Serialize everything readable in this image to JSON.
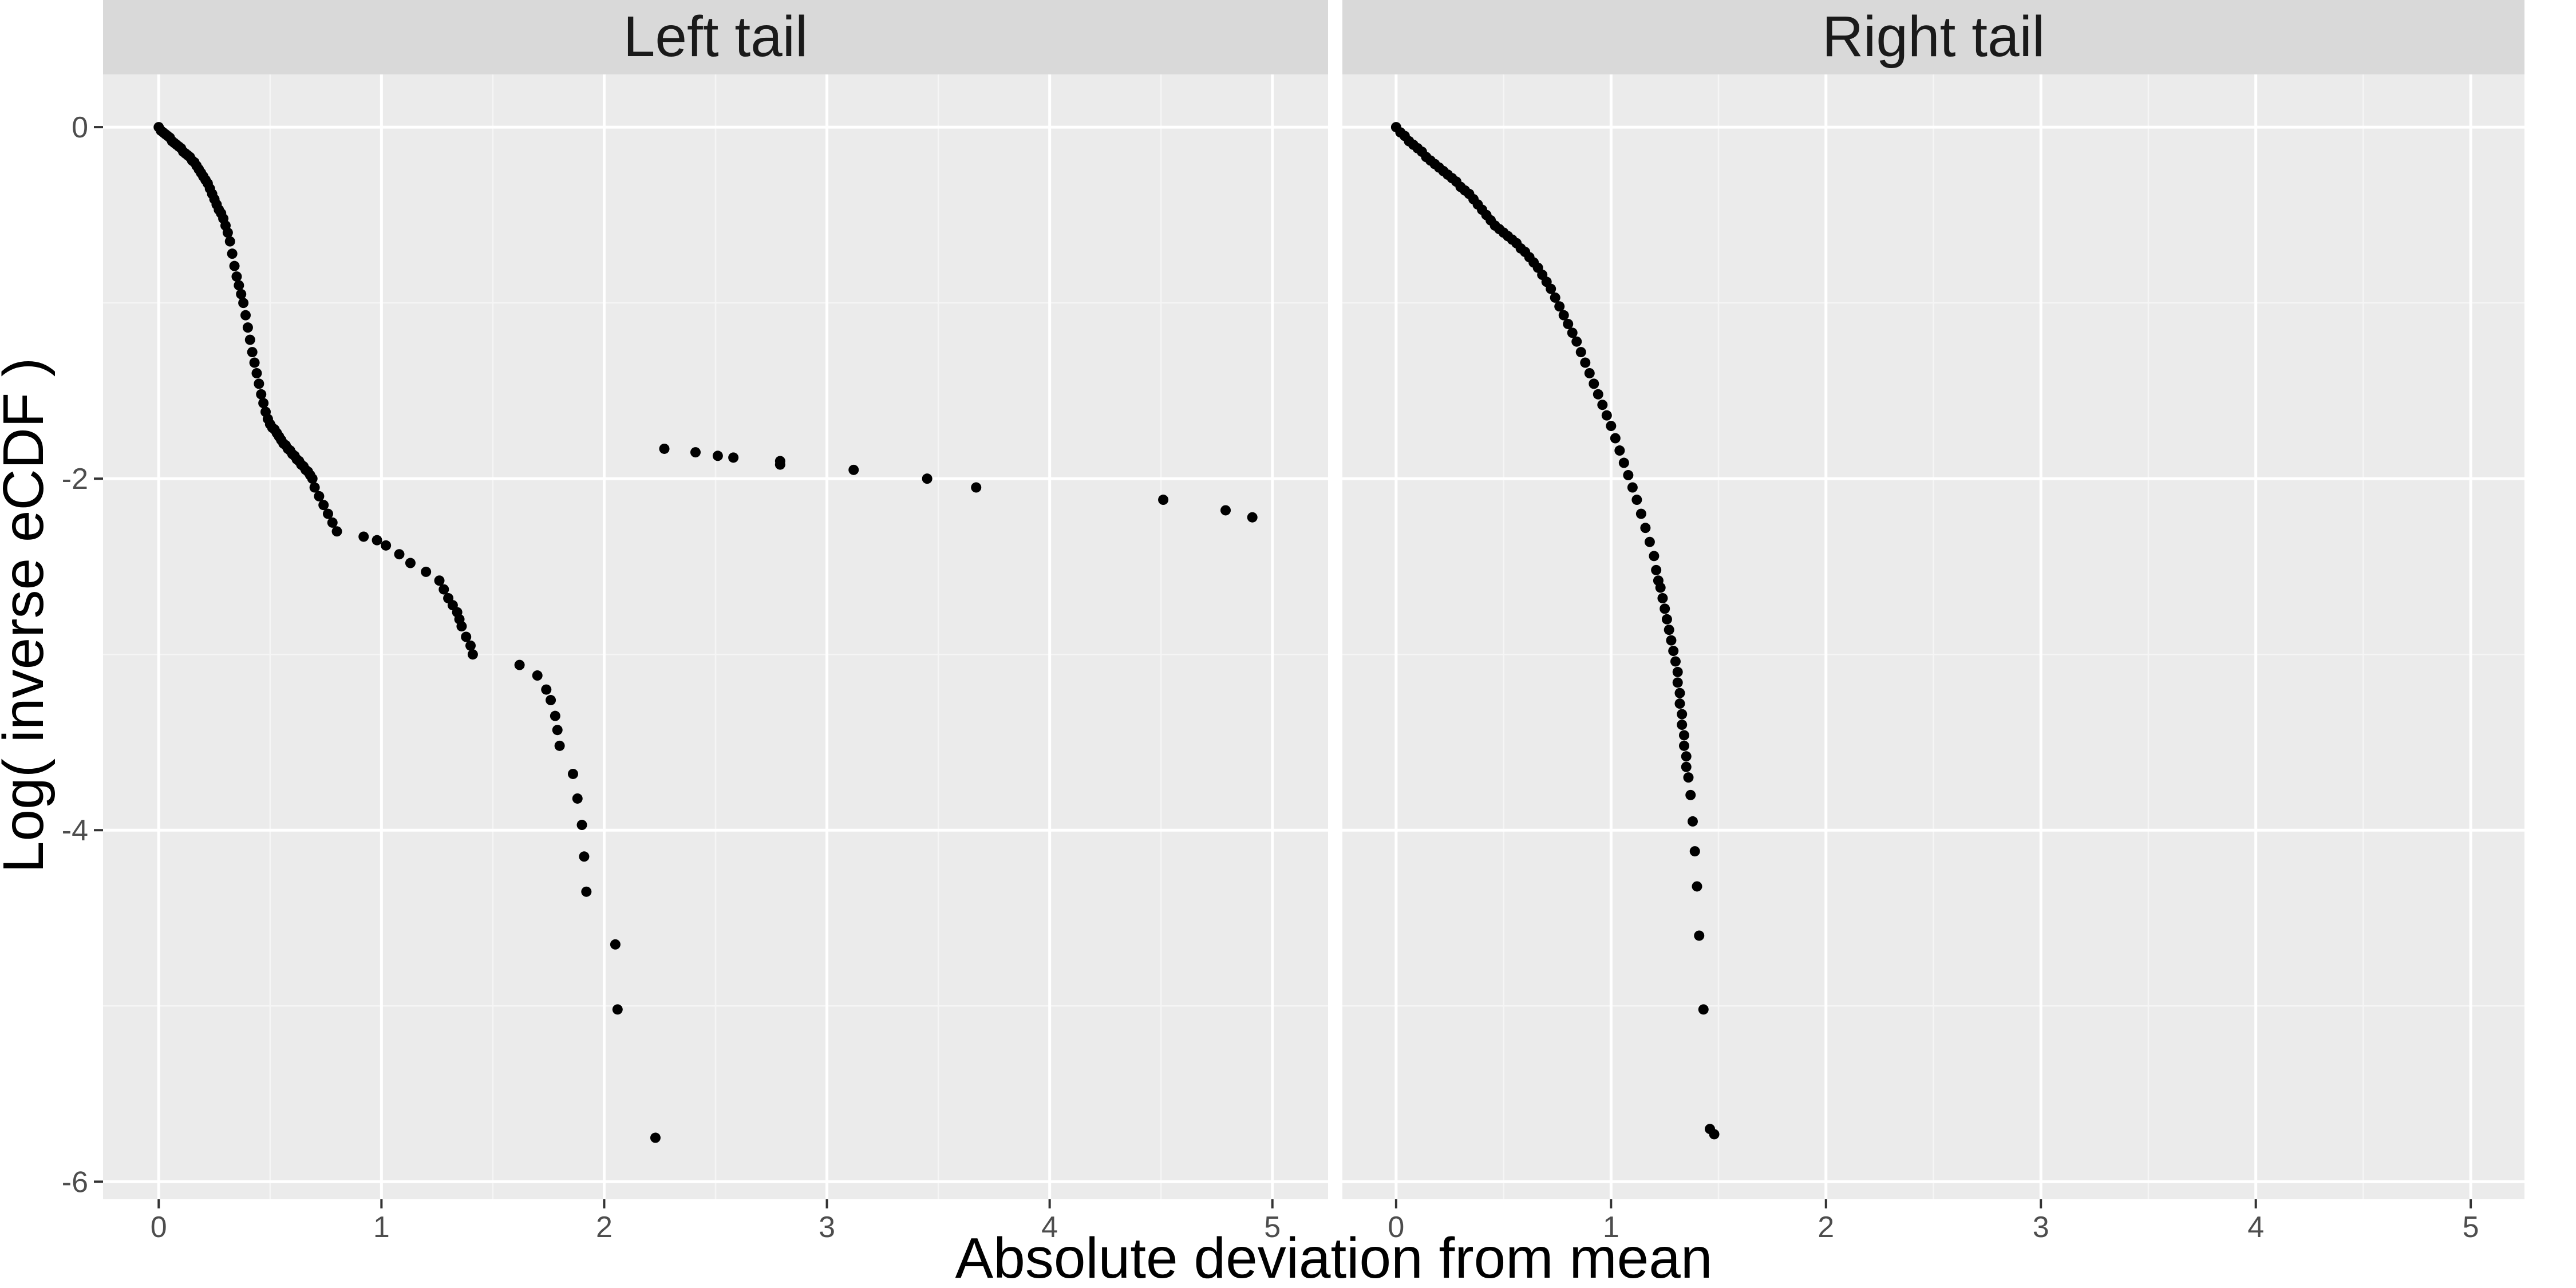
{
  "chart_data": {
    "type": "scatter",
    "xlabel": "Absolute deviation from mean",
    "ylabel": "Log( inverse eCDF )",
    "xlim": [
      -0.25,
      5.25
    ],
    "ylim": [
      -6.1,
      0.3
    ],
    "x_ticks": [
      0,
      1,
      2,
      3,
      4,
      5
    ],
    "y_ticks": [
      0,
      -2,
      -4,
      -6
    ],
    "grid": true,
    "point_color": "#000000",
    "panel_background": "#ebebeb",
    "strip_background": "#d9d9d9",
    "panels": [
      {
        "title": "Left tail",
        "x": [
          0.0,
          0.01,
          0.02,
          0.03,
          0.04,
          0.05,
          0.06,
          0.07,
          0.08,
          0.09,
          0.1,
          0.11,
          0.12,
          0.13,
          0.14,
          0.15,
          0.16,
          0.17,
          0.18,
          0.19,
          0.2,
          0.21,
          0.22,
          0.23,
          0.24,
          0.25,
          0.26,
          0.27,
          0.28,
          0.29,
          0.3,
          0.31,
          0.32,
          0.33,
          0.34,
          0.35,
          0.36,
          0.37,
          0.38,
          0.39,
          0.4,
          0.41,
          0.42,
          0.43,
          0.44,
          0.45,
          0.46,
          0.47,
          0.48,
          0.49,
          0.5,
          0.51,
          0.52,
          0.53,
          0.54,
          0.55,
          0.56,
          0.57,
          0.58,
          0.59,
          0.6,
          0.61,
          0.62,
          0.63,
          0.64,
          0.65,
          0.66,
          0.67,
          0.68,
          0.69,
          0.7,
          0.72,
          0.74,
          0.76,
          0.78,
          0.8,
          0.92,
          0.98,
          1.02,
          1.08,
          1.13,
          1.2,
          1.26,
          1.28,
          1.3,
          1.32,
          1.34,
          1.35,
          1.36,
          1.38,
          1.4,
          1.41,
          1.62,
          1.7,
          1.74,
          1.76,
          1.78,
          1.79,
          1.8,
          1.86,
          1.88,
          1.9,
          1.91,
          1.92,
          2.05,
          2.06,
          2.23,
          2.27,
          2.41,
          2.51,
          2.58,
          2.79,
          2.79,
          3.12,
          3.45,
          3.67,
          4.51,
          4.79,
          4.91
        ],
        "y": [
          0.0,
          -0.02,
          -0.03,
          -0.04,
          -0.05,
          -0.06,
          -0.08,
          -0.09,
          -0.1,
          -0.11,
          -0.12,
          -0.14,
          -0.15,
          -0.16,
          -0.17,
          -0.19,
          -0.2,
          -0.22,
          -0.24,
          -0.26,
          -0.28,
          -0.3,
          -0.32,
          -0.35,
          -0.38,
          -0.41,
          -0.44,
          -0.47,
          -0.49,
          -0.52,
          -0.56,
          -0.6,
          -0.65,
          -0.72,
          -0.79,
          -0.85,
          -0.9,
          -0.95,
          -1.0,
          -1.07,
          -1.14,
          -1.21,
          -1.28,
          -1.34,
          -1.4,
          -1.46,
          -1.52,
          -1.57,
          -1.62,
          -1.66,
          -1.69,
          -1.71,
          -1.72,
          -1.74,
          -1.76,
          -1.78,
          -1.8,
          -1.81,
          -1.83,
          -1.84,
          -1.86,
          -1.87,
          -1.89,
          -1.9,
          -1.92,
          -1.93,
          -1.95,
          -1.96,
          -1.98,
          -2.0,
          -2.05,
          -2.1,
          -2.15,
          -2.2,
          -2.25,
          -2.3,
          -2.33,
          -2.35,
          -2.38,
          -2.43,
          -2.48,
          -2.53,
          -2.58,
          -2.63,
          -2.68,
          -2.72,
          -2.76,
          -2.8,
          -2.84,
          -2.9,
          -2.95,
          -3.0,
          -3.06,
          -3.12,
          -3.2,
          -3.26,
          -3.35,
          -3.43,
          -3.52,
          -3.68,
          -3.82,
          -3.97,
          -4.15,
          -4.35,
          -4.65,
          -5.02,
          -5.75,
          -1.83,
          -1.85,
          -1.87,
          -1.88,
          -1.9,
          -1.92,
          -1.95,
          -2.0,
          -2.05,
          -2.12,
          -2.18,
          -2.22
        ],
        "y_note_removed": true
      },
      {
        "title": "Right tail",
        "x": [
          0.0,
          0.02,
          0.04,
          0.06,
          0.08,
          0.1,
          0.12,
          0.14,
          0.16,
          0.18,
          0.2,
          0.22,
          0.24,
          0.26,
          0.28,
          0.3,
          0.32,
          0.34,
          0.36,
          0.38,
          0.4,
          0.42,
          0.44,
          0.46,
          0.48,
          0.5,
          0.52,
          0.54,
          0.56,
          0.58,
          0.6,
          0.62,
          0.64,
          0.66,
          0.68,
          0.7,
          0.72,
          0.74,
          0.76,
          0.78,
          0.8,
          0.82,
          0.84,
          0.86,
          0.88,
          0.9,
          0.92,
          0.94,
          0.96,
          0.98,
          1.0,
          1.02,
          1.04,
          1.06,
          1.08,
          1.1,
          1.12,
          1.14,
          1.16,
          1.18,
          1.2,
          1.21,
          1.22,
          1.23,
          1.24,
          1.25,
          1.26,
          1.27,
          1.28,
          1.29,
          1.3,
          1.31,
          1.31,
          1.32,
          1.32,
          1.33,
          1.33,
          1.34,
          1.34,
          1.35,
          1.35,
          1.36,
          1.37,
          1.38,
          1.39,
          1.4,
          1.41,
          1.43,
          1.46,
          1.48
        ],
        "y": [
          0.0,
          -0.03,
          -0.05,
          -0.08,
          -0.1,
          -0.12,
          -0.14,
          -0.17,
          -0.19,
          -0.21,
          -0.23,
          -0.25,
          -0.27,
          -0.29,
          -0.31,
          -0.34,
          -0.36,
          -0.38,
          -0.41,
          -0.44,
          -0.47,
          -0.5,
          -0.53,
          -0.56,
          -0.58,
          -0.6,
          -0.62,
          -0.64,
          -0.66,
          -0.69,
          -0.71,
          -0.74,
          -0.77,
          -0.8,
          -0.84,
          -0.88,
          -0.92,
          -0.97,
          -1.02,
          -1.07,
          -1.12,
          -1.17,
          -1.22,
          -1.28,
          -1.34,
          -1.4,
          -1.46,
          -1.52,
          -1.58,
          -1.64,
          -1.7,
          -1.77,
          -1.84,
          -1.91,
          -1.98,
          -2.05,
          -2.12,
          -2.2,
          -2.28,
          -2.36,
          -2.44,
          -2.52,
          -2.58,
          -2.62,
          -2.68,
          -2.74,
          -2.8,
          -2.86,
          -2.92,
          -2.98,
          -3.04,
          -3.1,
          -3.16,
          -3.22,
          -3.28,
          -3.34,
          -3.4,
          -3.46,
          -3.52,
          -3.58,
          -3.64,
          -3.7,
          -3.8,
          -3.95,
          -4.12,
          -4.32,
          -4.6,
          -5.02,
          -5.7,
          -5.73
        ]
      }
    ]
  }
}
